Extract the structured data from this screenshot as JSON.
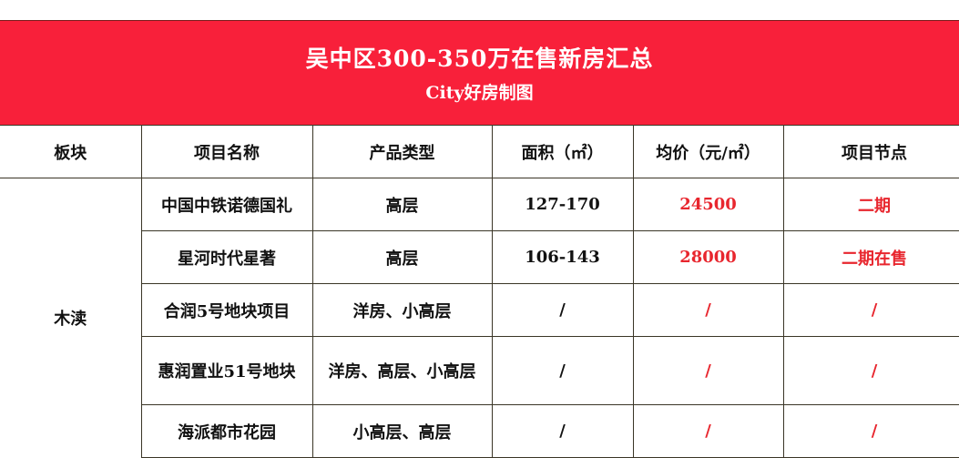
{
  "banner": {
    "title": "吴中区300-350万在售新房汇总",
    "subtitle": "City好房制图"
  },
  "colors": {
    "banner": "#f8203a",
    "highlight": "#e8262e"
  },
  "table": {
    "headers": [
      "板块",
      "项目名称",
      "产品类型",
      "面积（㎡）",
      "均价（元/㎡）",
      "项目节点"
    ],
    "board": "木渎",
    "rows": [
      {
        "name": "中国中铁诺德国礼",
        "type": "高层",
        "area": "127-170",
        "price": "24500",
        "stage": "二期"
      },
      {
        "name": "星河时代星著",
        "type": "高层",
        "area": "106-143",
        "price": "28000",
        "stage": "二期在售"
      },
      {
        "name": "合润5号地块项目",
        "type": "洋房、小高层",
        "area": "/",
        "price": "/",
        "stage": "/"
      },
      {
        "name": "惠润置业51号地块",
        "type": "洋房、高层、小高层",
        "area": "/",
        "price": "/",
        "stage": "/"
      },
      {
        "name": "海派都市花园",
        "type": "小高层、高层",
        "area": "/",
        "price": "/",
        "stage": "/"
      }
    ]
  }
}
